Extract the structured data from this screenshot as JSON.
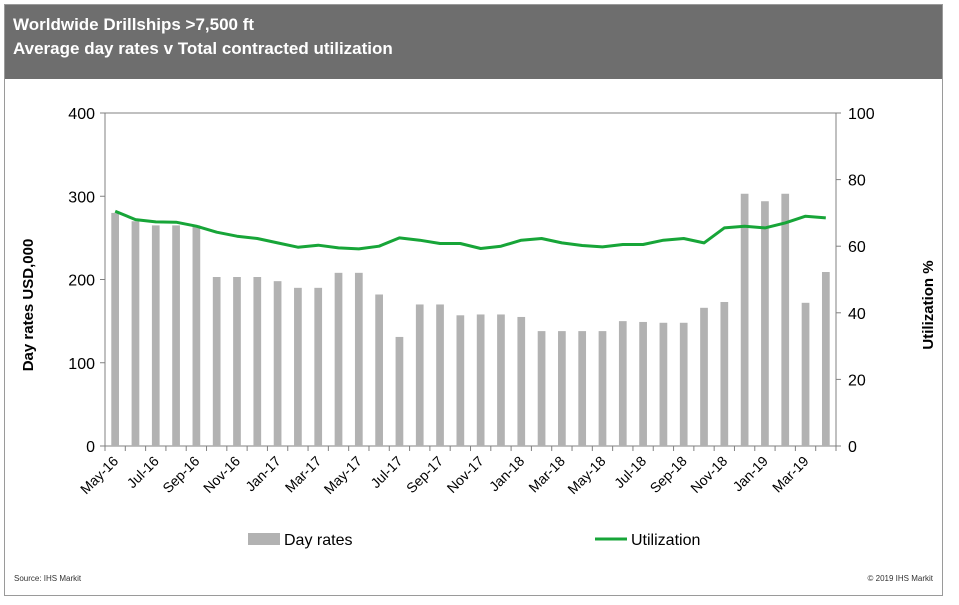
{
  "header": {
    "title": "Worldwide Drillships >7,500 ft",
    "subtitle": "Average day rates v Total contracted utilization"
  },
  "footer": {
    "source": "Source:  IHS Markit",
    "copyright": "© 2019  IHS Markit"
  },
  "colors": {
    "header_bg": "#6e6e6e",
    "bars": "#b2b2b2",
    "line": "#17a538"
  },
  "chart_data": {
    "type": "bar",
    "title": "Worldwide Drillships >7,500 ft",
    "subtitle": "Average day rates v Total contracted utilization",
    "ylabel": "Day rates USD,000",
    "y2label": "Utilization %",
    "ylim": [
      0,
      400
    ],
    "y2lim": [
      0,
      100
    ],
    "yticks": [
      0,
      100,
      200,
      300,
      400
    ],
    "y2ticks": [
      0,
      20,
      40,
      60,
      80,
      100
    ],
    "grid": false,
    "legend_position": "bottom",
    "x_tick_labels": [
      "May-16",
      "Jul-16",
      "Sep-16",
      "Nov-16",
      "Jan-17",
      "Mar-17",
      "May-17",
      "Jul-17",
      "Sep-17",
      "Nov-17",
      "Jan-18",
      "Mar-18",
      "May-18",
      "Jul-18",
      "Sep-18",
      "Nov-18",
      "Jan-19",
      "Mar-19"
    ],
    "categories": [
      "May-16",
      "Jun-16",
      "Jul-16",
      "Aug-16",
      "Sep-16",
      "Oct-16",
      "Nov-16",
      "Dec-16",
      "Jan-17",
      "Feb-17",
      "Mar-17",
      "Apr-17",
      "May-17",
      "Jun-17",
      "Jul-17",
      "Aug-17",
      "Sep-17",
      "Oct-17",
      "Nov-17",
      "Dec-17",
      "Jan-18",
      "Feb-18",
      "Mar-18",
      "Apr-18",
      "May-18",
      "Jun-18",
      "Jul-18",
      "Aug-18",
      "Sep-18",
      "Oct-18",
      "Nov-18",
      "Dec-18",
      "Jan-19",
      "Feb-19",
      "Mar-19",
      "Apr-19"
    ],
    "series": [
      {
        "name": "Day rates",
        "type": "bar",
        "axis": "left",
        "values": [
          280,
          270,
          265,
          265,
          265,
          203,
          203,
          203,
          198,
          190,
          190,
          208,
          208,
          182,
          131,
          170,
          170,
          157,
          158,
          158,
          155,
          138,
          138,
          138,
          138,
          150,
          149,
          148,
          148,
          166,
          173,
          303,
          294,
          303,
          172,
          209
        ]
      },
      {
        "name": "Utilization",
        "type": "line",
        "axis": "right",
        "values": [
          70.5,
          68,
          67.3,
          67.2,
          66,
          64.2,
          63,
          62.3,
          61,
          59.7,
          60.3,
          59.5,
          59.2,
          60,
          62.5,
          61.8,
          60.8,
          60.8,
          59.3,
          60,
          61.8,
          62.3,
          61,
          60.2,
          59.8,
          60.5,
          60.5,
          61.8,
          62.3,
          61,
          65.5,
          66,
          65.5,
          67,
          69,
          68.5
        ]
      }
    ]
  }
}
